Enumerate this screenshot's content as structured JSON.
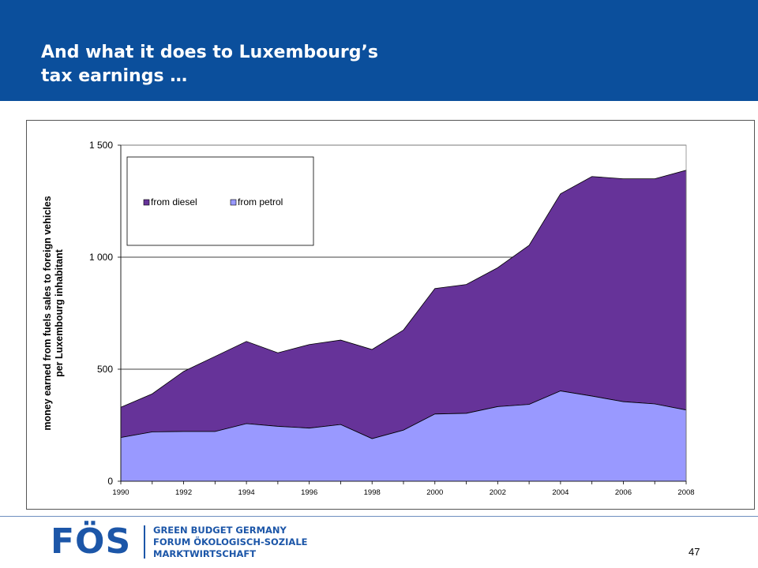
{
  "header": {
    "title_line1": "And what it does to Luxembourg’s",
    "title_line2": "tax earnings …",
    "background_color": "#0b4f9c"
  },
  "chart_data": {
    "type": "area",
    "stacked": true,
    "x": [
      1990,
      1991,
      1992,
      1993,
      1994,
      1995,
      1996,
      1997,
      1998,
      1999,
      2000,
      2001,
      2002,
      2003,
      2004,
      2005,
      2006,
      2007,
      2008
    ],
    "series": [
      {
        "name": "from petrol",
        "color": "#9999ff",
        "values": [
          195,
          220,
          222,
          222,
          257,
          245,
          237,
          253,
          190,
          228,
          300,
          303,
          333,
          343,
          403,
          380,
          355,
          345,
          318
        ]
      },
      {
        "name": "from diesel",
        "color": "#663399",
        "values": [
          135,
          170,
          268,
          335,
          367,
          328,
          373,
          377,
          398,
          447,
          560,
          575,
          620,
          710,
          880,
          980,
          995,
          1005,
          1070
        ]
      }
    ],
    "xlabel": "",
    "ylabel": "money earned from fuels sales to foreign vehicles per Luxembourg inhabitant",
    "ylabel_lines": [
      "money earned from fuels sales to foreign vehicles",
      "per Luxembourg inhabitant"
    ],
    "ylim": [
      0,
      1500
    ],
    "y_ticks": [
      0,
      500,
      1000,
      1500
    ],
    "y_tick_labels": [
      "0",
      "500",
      "1 000",
      "1 500"
    ],
    "x_tick_labels": [
      "1990",
      "1992",
      "1994",
      "1996",
      "1998",
      "2000",
      "2002",
      "2004",
      "2006",
      "2008"
    ],
    "legend_placement": "top-left",
    "legend_order": [
      "from diesel",
      "from petrol"
    ],
    "grid": "horizontal"
  },
  "footer": {
    "logo_text": "FÖS",
    "org_line1": "GREEN BUDGET GERMANY",
    "org_line2": "FORUM ÖKOLOGISCH-SOZIALE",
    "org_line3": "MARKTWIRTSCHAFT",
    "page_number": "47"
  }
}
